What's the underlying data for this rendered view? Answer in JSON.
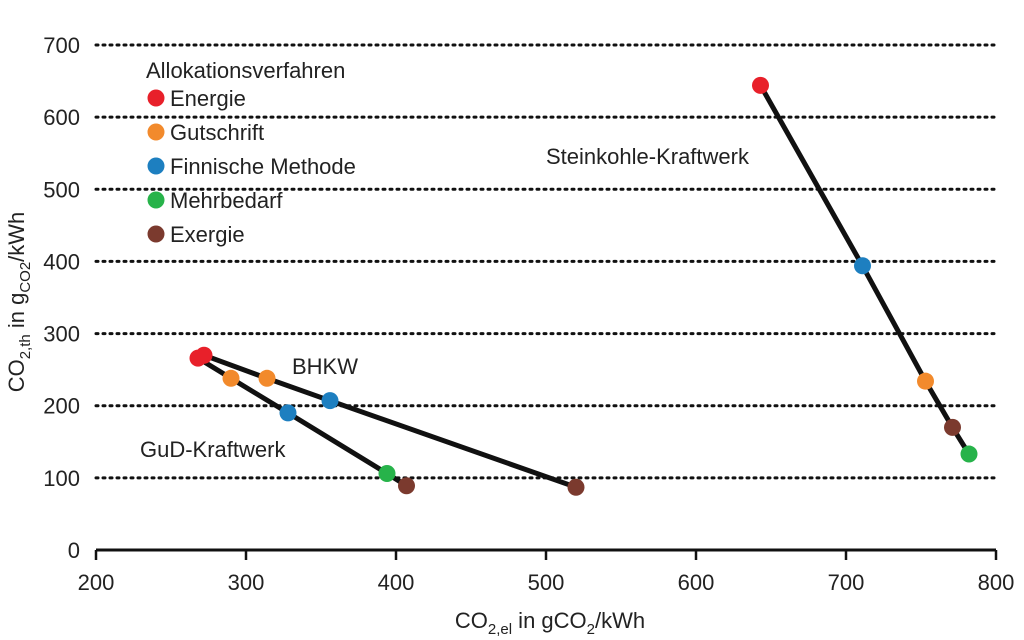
{
  "chart_data": {
    "type": "scatter",
    "xlabel": {
      "base": "CO",
      "sub": "2,el",
      "rest": " in gCO",
      "sub2": "2",
      "rest2": "/kWh"
    },
    "ylabel": {
      "base": "CO",
      "sub": "2,th",
      "mid": " in g",
      "sub2": "CO2",
      "rest": "/kWh"
    },
    "xlim": [
      200,
      800
    ],
    "ylim": [
      0,
      700
    ],
    "xticks": [
      200,
      300,
      400,
      500,
      600,
      700,
      800
    ],
    "yticks": [
      0,
      100,
      200,
      300,
      400,
      500,
      600,
      700
    ],
    "grid": "horizontal-dotted",
    "legend": {
      "title": "Allokationsverfahren",
      "placement": "top-left",
      "entries": [
        {
          "label": "Energie",
          "color": "#e8202a"
        },
        {
          "label": "Gutschrift",
          "color": "#f28a2c"
        },
        {
          "label": "Finnische Methode",
          "color": "#1d7fc0"
        },
        {
          "label": "Mehrbedarf",
          "color": "#27b34a"
        },
        {
          "label": "Exergie",
          "color": "#7b3a2e"
        }
      ]
    },
    "series": [
      {
        "name": "Steinkohle-Kraftwerk",
        "points": [
          {
            "x": 643,
            "y": 644,
            "method": "Energie"
          },
          {
            "x": 711,
            "y": 394,
            "method": "Finnische Methode"
          },
          {
            "x": 753,
            "y": 234,
            "method": "Gutschrift"
          },
          {
            "x": 771,
            "y": 170,
            "method": "Exergie"
          },
          {
            "x": 782,
            "y": 133,
            "method": "Mehrbedarf"
          }
        ]
      },
      {
        "name": "BHKW",
        "points": [
          {
            "x": 272,
            "y": 270,
            "method": "Energie"
          },
          {
            "x": 314,
            "y": 238,
            "method": "Gutschrift"
          },
          {
            "x": 356,
            "y": 207,
            "method": "Finnische Methode"
          },
          {
            "x": 520,
            "y": 87,
            "method": "Exergie"
          }
        ]
      },
      {
        "name": "GuD-Kraftwerk",
        "points": [
          {
            "x": 268,
            "y": 266,
            "method": "Energie"
          },
          {
            "x": 290,
            "y": 238,
            "method": "Gutschrift"
          },
          {
            "x": 328,
            "y": 190,
            "method": "Finnische Methode"
          },
          {
            "x": 394,
            "y": 106,
            "method": "Mehrbedarf"
          },
          {
            "x": 407,
            "y": 89,
            "method": "Exergie"
          }
        ]
      }
    ]
  }
}
